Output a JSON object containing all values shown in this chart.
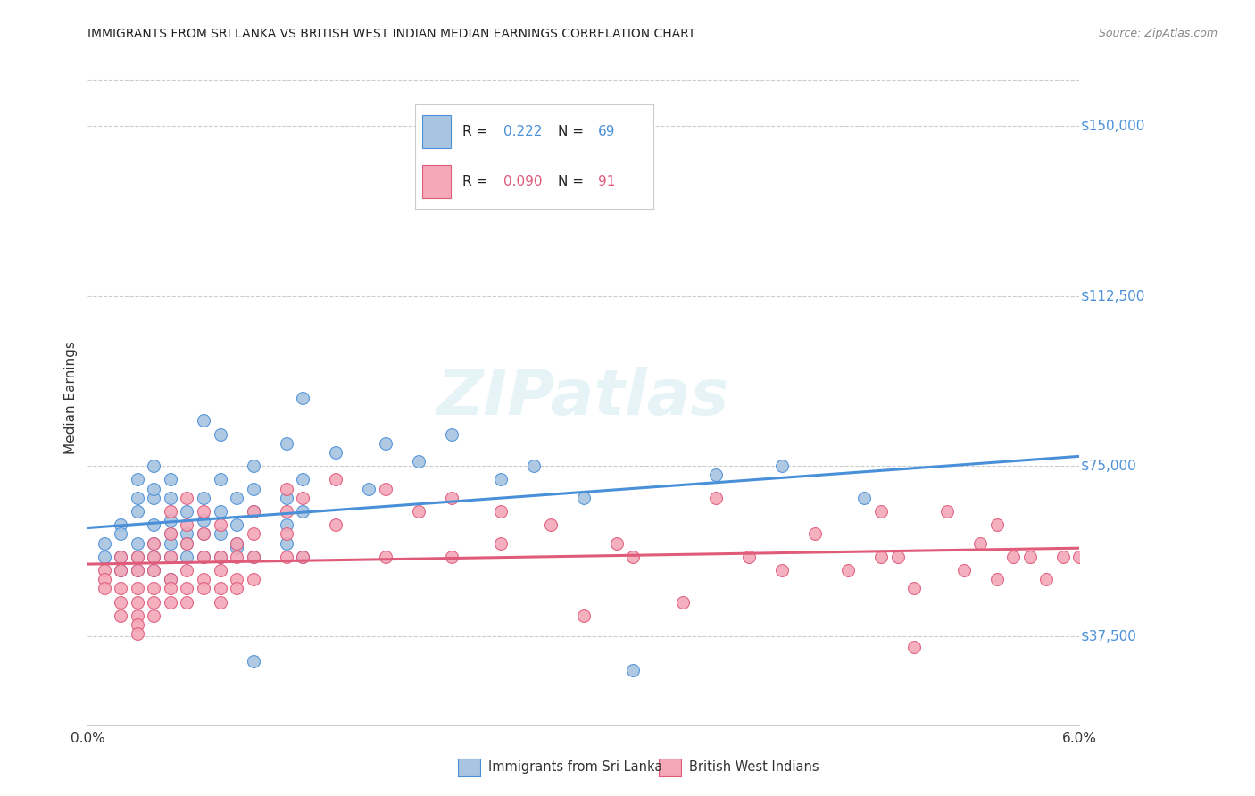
{
  "title": "IMMIGRANTS FROM SRI LANKA VS BRITISH WEST INDIAN MEDIAN EARNINGS CORRELATION CHART",
  "source": "Source: ZipAtlas.com",
  "ylabel": "Median Earnings",
  "y_tick_labels": [
    "$37,500",
    "$75,000",
    "$112,500",
    "$150,000"
  ],
  "y_tick_values": [
    37500,
    75000,
    112500,
    150000
  ],
  "y_min": 18000,
  "y_max": 162000,
  "x_min": 0.0,
  "x_max": 0.06,
  "sri_lanka_color": "#a8c4e0",
  "bwi_color": "#f4a8b8",
  "sri_lanka_line_color": "#4a90d9",
  "bwi_line_color": "#e05a7a",
  "watermark": "ZIPatlas",
  "legend_label_1": "Immigrants from Sri Lanka",
  "legend_label_2": "British West Indians",
  "sri_lanka_scatter": [
    [
      0.001,
      58000
    ],
    [
      0.001,
      55000
    ],
    [
      0.002,
      62000
    ],
    [
      0.002,
      60000
    ],
    [
      0.002,
      55000
    ],
    [
      0.002,
      52000
    ],
    [
      0.003,
      58000
    ],
    [
      0.003,
      55000
    ],
    [
      0.003,
      52000
    ],
    [
      0.003,
      68000
    ],
    [
      0.003,
      65000
    ],
    [
      0.003,
      72000
    ],
    [
      0.004,
      58000
    ],
    [
      0.004,
      62000
    ],
    [
      0.004,
      68000
    ],
    [
      0.004,
      75000
    ],
    [
      0.004,
      70000
    ],
    [
      0.004,
      55000
    ],
    [
      0.004,
      52000
    ],
    [
      0.005,
      60000
    ],
    [
      0.005,
      63000
    ],
    [
      0.005,
      58000
    ],
    [
      0.005,
      55000
    ],
    [
      0.005,
      50000
    ],
    [
      0.005,
      72000
    ],
    [
      0.005,
      68000
    ],
    [
      0.006,
      65000
    ],
    [
      0.006,
      60000
    ],
    [
      0.006,
      55000
    ],
    [
      0.006,
      58000
    ],
    [
      0.007,
      63000
    ],
    [
      0.007,
      60000
    ],
    [
      0.007,
      55000
    ],
    [
      0.007,
      85000
    ],
    [
      0.007,
      68000
    ],
    [
      0.008,
      72000
    ],
    [
      0.008,
      65000
    ],
    [
      0.008,
      60000
    ],
    [
      0.008,
      55000
    ],
    [
      0.008,
      82000
    ],
    [
      0.009,
      68000
    ],
    [
      0.009,
      62000
    ],
    [
      0.009,
      58000
    ],
    [
      0.009,
      57000
    ],
    [
      0.01,
      75000
    ],
    [
      0.01,
      70000
    ],
    [
      0.01,
      65000
    ],
    [
      0.01,
      55000
    ],
    [
      0.01,
      32000
    ],
    [
      0.012,
      80000
    ],
    [
      0.012,
      68000
    ],
    [
      0.012,
      62000
    ],
    [
      0.012,
      58000
    ],
    [
      0.013,
      90000
    ],
    [
      0.013,
      72000
    ],
    [
      0.013,
      65000
    ],
    [
      0.013,
      55000
    ],
    [
      0.015,
      78000
    ],
    [
      0.017,
      70000
    ],
    [
      0.018,
      80000
    ],
    [
      0.02,
      76000
    ],
    [
      0.022,
      82000
    ],
    [
      0.025,
      72000
    ],
    [
      0.027,
      75000
    ],
    [
      0.03,
      68000
    ],
    [
      0.033,
      30000
    ],
    [
      0.038,
      73000
    ],
    [
      0.042,
      75000
    ],
    [
      0.047,
      68000
    ]
  ],
  "bwi_scatter": [
    [
      0.001,
      52000
    ],
    [
      0.001,
      50000
    ],
    [
      0.001,
      48000
    ],
    [
      0.002,
      55000
    ],
    [
      0.002,
      52000
    ],
    [
      0.002,
      48000
    ],
    [
      0.002,
      45000
    ],
    [
      0.002,
      42000
    ],
    [
      0.003,
      55000
    ],
    [
      0.003,
      52000
    ],
    [
      0.003,
      48000
    ],
    [
      0.003,
      45000
    ],
    [
      0.003,
      42000
    ],
    [
      0.003,
      40000
    ],
    [
      0.003,
      38000
    ],
    [
      0.004,
      58000
    ],
    [
      0.004,
      55000
    ],
    [
      0.004,
      52000
    ],
    [
      0.004,
      48000
    ],
    [
      0.004,
      45000
    ],
    [
      0.004,
      42000
    ],
    [
      0.005,
      65000
    ],
    [
      0.005,
      60000
    ],
    [
      0.005,
      55000
    ],
    [
      0.005,
      50000
    ],
    [
      0.005,
      48000
    ],
    [
      0.005,
      45000
    ],
    [
      0.006,
      68000
    ],
    [
      0.006,
      62000
    ],
    [
      0.006,
      58000
    ],
    [
      0.006,
      52000
    ],
    [
      0.006,
      48000
    ],
    [
      0.006,
      45000
    ],
    [
      0.007,
      65000
    ],
    [
      0.007,
      60000
    ],
    [
      0.007,
      55000
    ],
    [
      0.007,
      50000
    ],
    [
      0.007,
      48000
    ],
    [
      0.008,
      62000
    ],
    [
      0.008,
      55000
    ],
    [
      0.008,
      52000
    ],
    [
      0.008,
      48000
    ],
    [
      0.008,
      45000
    ],
    [
      0.009,
      58000
    ],
    [
      0.009,
      55000
    ],
    [
      0.009,
      50000
    ],
    [
      0.009,
      48000
    ],
    [
      0.01,
      65000
    ],
    [
      0.01,
      60000
    ],
    [
      0.01,
      55000
    ],
    [
      0.01,
      50000
    ],
    [
      0.012,
      70000
    ],
    [
      0.012,
      65000
    ],
    [
      0.012,
      60000
    ],
    [
      0.012,
      55000
    ],
    [
      0.013,
      68000
    ],
    [
      0.013,
      55000
    ],
    [
      0.015,
      72000
    ],
    [
      0.015,
      62000
    ],
    [
      0.018,
      70000
    ],
    [
      0.018,
      55000
    ],
    [
      0.02,
      65000
    ],
    [
      0.022,
      68000
    ],
    [
      0.022,
      55000
    ],
    [
      0.025,
      65000
    ],
    [
      0.025,
      58000
    ],
    [
      0.028,
      62000
    ],
    [
      0.03,
      42000
    ],
    [
      0.032,
      58000
    ],
    [
      0.033,
      55000
    ],
    [
      0.036,
      45000
    ],
    [
      0.038,
      68000
    ],
    [
      0.04,
      55000
    ],
    [
      0.042,
      52000
    ],
    [
      0.044,
      60000
    ],
    [
      0.046,
      52000
    ],
    [
      0.048,
      65000
    ],
    [
      0.048,
      55000
    ],
    [
      0.049,
      55000
    ],
    [
      0.05,
      48000
    ],
    [
      0.05,
      35000
    ],
    [
      0.052,
      65000
    ],
    [
      0.053,
      52000
    ],
    [
      0.054,
      58000
    ],
    [
      0.055,
      50000
    ],
    [
      0.055,
      62000
    ],
    [
      0.056,
      55000
    ],
    [
      0.057,
      55000
    ],
    [
      0.058,
      50000
    ],
    [
      0.059,
      55000
    ],
    [
      0.06,
      55000
    ]
  ]
}
